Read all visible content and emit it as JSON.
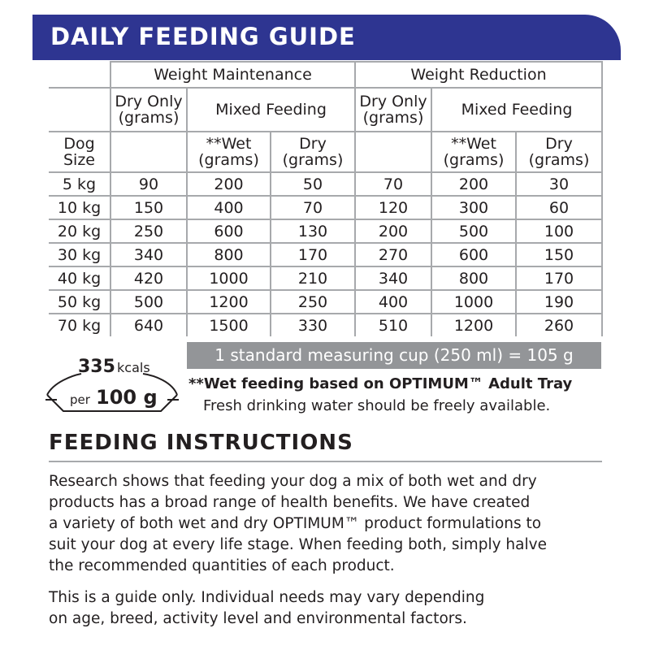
{
  "guide": {
    "title": "DAILY FEEDING GUIDE",
    "groups": [
      "Weight Maintenance",
      "Weight Reduction"
    ],
    "sub_headers": {
      "dry_only": "Dry Only (grams)",
      "mixed": "Mixed Feeding"
    },
    "columns": {
      "dog_size": "Dog Size",
      "wet": "**Wet (grams)",
      "dry": "Dry (grams)"
    },
    "rows": [
      {
        "size": "5 kg",
        "m_dry": "90",
        "m_wet": "200",
        "m_mix_dry": "50",
        "r_dry": "70",
        "r_wet": "200",
        "r_mix_dry": "30"
      },
      {
        "size": "10 kg",
        "m_dry": "150",
        "m_wet": "400",
        "m_mix_dry": "70",
        "r_dry": "120",
        "r_wet": "300",
        "r_mix_dry": "60"
      },
      {
        "size": "20 kg",
        "m_dry": "250",
        "m_wet": "600",
        "m_mix_dry": "130",
        "r_dry": "200",
        "r_wet": "500",
        "r_mix_dry": "100"
      },
      {
        "size": "30 kg",
        "m_dry": "340",
        "m_wet": "800",
        "m_mix_dry": "170",
        "r_dry": "270",
        "r_wet": "600",
        "r_mix_dry": "150"
      },
      {
        "size": "40 kg",
        "m_dry": "420",
        "m_wet": "1000",
        "m_mix_dry": "210",
        "r_dry": "340",
        "r_wet": "800",
        "r_mix_dry": "170"
      },
      {
        "size": "50 kg",
        "m_dry": "500",
        "m_wet": "1200",
        "m_mix_dry": "250",
        "r_dry": "400",
        "r_wet": "1000",
        "r_mix_dry": "190"
      },
      {
        "size": "70 kg",
        "m_dry": "640",
        "m_wet": "1500",
        "m_mix_dry": "330",
        "r_dry": "510",
        "r_wet": "1200",
        "r_mix_dry": "260"
      }
    ],
    "cup_note": "1 standard measuring cup (250 ml) = 105 g"
  },
  "energy": {
    "kcal_value": "335",
    "kcal_unit": "kcals",
    "per_label": "per",
    "per_amount": "100 g"
  },
  "notes": {
    "wet": "**Wet feeding based on OPTIMUM™ Adult Tray",
    "water": "Fresh drinking water should be freely available."
  },
  "instructions": {
    "title": "FEEDING INSTRUCTIONS",
    "paragraph1": [
      "Research shows that feeding your dog a mix of both wet and dry",
      "products has a broad range of health benefits.  We have created",
      "a variety of both wet and dry OPTIMUM™ product formulations to",
      "suit your dog at every life stage.  When feeding both, simply halve",
      "the recommended quantities of each product."
    ],
    "paragraph2": [
      "This is a guide only.  Individual needs may vary depending",
      "on age, breed, activity level and environmental factors."
    ]
  },
  "colors": {
    "banner": "#2e3591",
    "grid": "#a7a9ac",
    "cup_bar": "#939598",
    "text": "#231f20"
  }
}
